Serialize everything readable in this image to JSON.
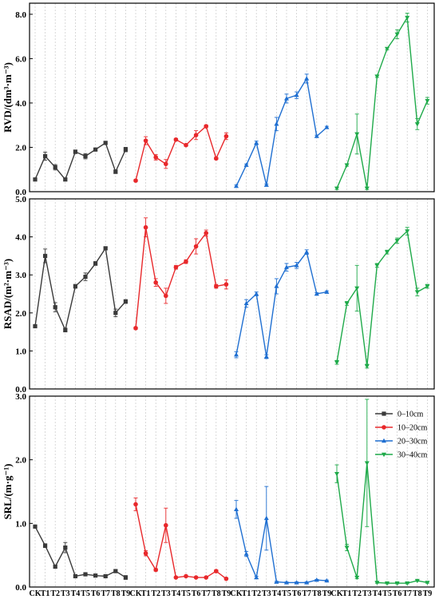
{
  "chart_data": {
    "type": "line",
    "x_categories": [
      "CK",
      "T1",
      "T2",
      "T3",
      "T4",
      "T5",
      "T6",
      "T7",
      "T8",
      "T9"
    ],
    "legend": {
      "placement": "top-right of bottom panel",
      "entries": [
        {
          "label": "0–10cm",
          "color": "#3a3a3a",
          "marker": "square"
        },
        {
          "label": "10–20cm",
          "color": "#e8282b",
          "marker": "circle"
        },
        {
          "label": "20–30cm",
          "color": "#1f6fd1",
          "marker": "triangle-up"
        },
        {
          "label": "30–40cm",
          "color": "#1faa4a",
          "marker": "triangle-down"
        }
      ]
    },
    "grid": "vertical dashed lines at each category",
    "panels": [
      {
        "id": "rvd",
        "ylabel": "RVD/(dm³·m⁻³)",
        "ylim": [
          0,
          8.5
        ],
        "yticks": [
          0.0,
          2.0,
          4.0,
          6.0,
          8.0
        ],
        "ytick_labels": [
          "0.0",
          "2.0",
          "4.0",
          "6.0",
          "8.0"
        ],
        "series": [
          {
            "name": "0–10cm",
            "values": [
              0.55,
              1.6,
              1.1,
              0.55,
              1.8,
              1.6,
              1.9,
              2.2,
              0.9,
              1.9
            ],
            "errors": [
              0.05,
              0.18,
              0.12,
              0.05,
              0.08,
              0.12,
              0.05,
              0.05,
              0.08,
              0.1
            ]
          },
          {
            "name": "10–20cm",
            "values": [
              0.5,
              2.3,
              1.55,
              1.25,
              2.35,
              2.1,
              2.55,
              2.95,
              1.5,
              2.5
            ],
            "errors": [
              0.05,
              0.18,
              0.12,
              0.2,
              0.05,
              0.05,
              0.2,
              0.05,
              0.05,
              0.15
            ]
          },
          {
            "name": "20–30cm",
            "values": [
              0.25,
              1.2,
              2.2,
              0.3,
              3.05,
              4.2,
              4.35,
              5.1,
              2.5,
              2.9
            ],
            "errors": [
              0.05,
              0.05,
              0.08,
              0.05,
              0.3,
              0.2,
              0.15,
              0.2,
              0.05,
              0.05
            ]
          },
          {
            "name": "30–40cm",
            "values": [
              0.15,
              1.2,
              2.6,
              0.15,
              5.2,
              6.45,
              7.1,
              7.85,
              3.05,
              4.1
            ],
            "errors": [
              0.05,
              0.05,
              0.9,
              0.05,
              0.05,
              0.05,
              0.2,
              0.2,
              0.25,
              0.15
            ]
          }
        ]
      },
      {
        "id": "rsad",
        "ylabel": "RSAD/(m²·m⁻³)",
        "ylim": [
          0,
          5
        ],
        "yticks": [
          0.0,
          1.0,
          2.0,
          3.0,
          4.0,
          5.0
        ],
        "ytick_labels": [
          "0.0",
          "1.0",
          "2.0",
          "3.0",
          "4.0",
          "5.0"
        ],
        "series": [
          {
            "name": "0–10cm",
            "values": [
              1.65,
              3.5,
              2.15,
              1.55,
              2.7,
              2.95,
              3.3,
              3.7,
              2.0,
              2.3
            ],
            "errors": [
              0.03,
              0.18,
              0.12,
              0.05,
              0.05,
              0.1,
              0.05,
              0.03,
              0.1,
              0.05
            ]
          },
          {
            "name": "10–20cm",
            "values": [
              1.6,
              4.25,
              2.8,
              2.45,
              3.2,
              3.35,
              3.75,
              4.1,
              2.7,
              2.75
            ],
            "errors": [
              0.03,
              0.25,
              0.1,
              0.2,
              0.05,
              0.05,
              0.2,
              0.08,
              0.05,
              0.12
            ]
          },
          {
            "name": "20–30cm",
            "values": [
              0.9,
              2.25,
              2.5,
              0.85,
              2.7,
              3.2,
              3.25,
              3.6,
              2.5,
              2.55
            ],
            "errors": [
              0.08,
              0.1,
              0.05,
              0.05,
              0.2,
              0.1,
              0.08,
              0.06,
              0.03,
              0.03
            ]
          },
          {
            "name": "30–40cm",
            "values": [
              0.7,
              2.25,
              2.65,
              0.6,
              3.25,
              3.6,
              3.9,
              4.15,
              2.55,
              2.7
            ],
            "errors": [
              0.05,
              0.05,
              0.6,
              0.05,
              0.05,
              0.05,
              0.07,
              0.1,
              0.1,
              0.05
            ]
          }
        ]
      },
      {
        "id": "srl",
        "ylabel": "SRL/(m·g⁻¹)",
        "ylim": [
          0,
          3
        ],
        "yticks": [
          0.0,
          1.0,
          2.0,
          3.0
        ],
        "ytick_labels": [
          "0.0",
          "1.0",
          "2.0",
          "3.0"
        ],
        "series": [
          {
            "name": "0–10cm",
            "values": [
              0.95,
              0.65,
              0.32,
              0.62,
              0.17,
              0.2,
              0.18,
              0.17,
              0.25,
              0.15
            ],
            "errors": [
              0.02,
              0.03,
              0.02,
              0.08,
              0.02,
              0.02,
              0.02,
              0.02,
              0.02,
              0.03
            ]
          },
          {
            "name": "10–20cm",
            "values": [
              1.3,
              0.53,
              0.27,
              0.97,
              0.15,
              0.17,
              0.15,
              0.15,
              0.25,
              0.13
            ],
            "errors": [
              0.1,
              0.04,
              0.02,
              0.27,
              0.01,
              0.01,
              0.01,
              0.01,
              0.02,
              0.01
            ]
          },
          {
            "name": "20–30cm",
            "values": [
              1.22,
              0.52,
              0.15,
              1.08,
              0.08,
              0.07,
              0.07,
              0.07,
              0.11,
              0.1
            ],
            "errors": [
              0.14,
              0.04,
              0.02,
              0.5,
              0.01,
              0.01,
              0.01,
              0.01,
              0.01,
              0.01
            ]
          },
          {
            "name": "30–40cm",
            "values": [
              1.78,
              0.62,
              0.15,
              1.95,
              0.07,
              0.06,
              0.06,
              0.06,
              0.1,
              0.07
            ],
            "errors": [
              0.14,
              0.05,
              0.02,
              1.0,
              0.01,
              0.01,
              0.01,
              0.01,
              0.01,
              0.01
            ]
          }
        ]
      }
    ]
  }
}
